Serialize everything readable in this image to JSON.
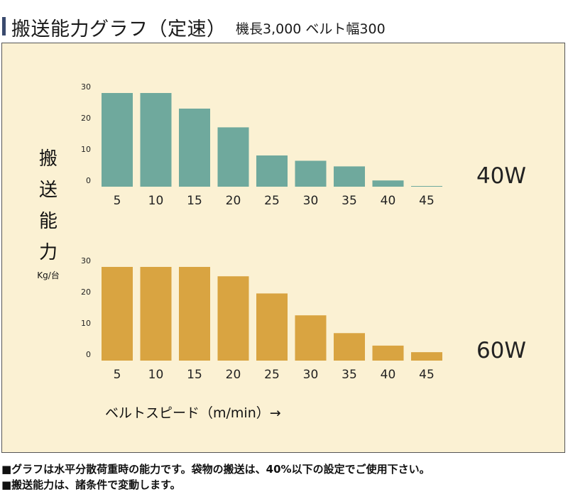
{
  "header": {
    "title": "搬送能力グラフ（定速）",
    "subtitle": "機長3,000 ベルト幅300"
  },
  "chart_data": [
    {
      "type": "bar",
      "series_name": "40W",
      "categories": [
        "5",
        "10",
        "15",
        "20",
        "25",
        "30",
        "35",
        "40",
        "45"
      ],
      "values": [
        30,
        30,
        25,
        19,
        10,
        8.3,
        6.5,
        2,
        0
      ],
      "ylabel": "搬送能力",
      "yunit": "Kg/台",
      "xlabel": "ベルトスピード（m/min）→",
      "yticks": [
        "0",
        "10",
        "20",
        "30"
      ],
      "ylim": [
        0,
        30
      ],
      "color": "#6fa99d"
    },
    {
      "type": "bar",
      "series_name": "60W",
      "categories": [
        "5",
        "10",
        "15",
        "20",
        "25",
        "30",
        "35",
        "40",
        "45"
      ],
      "values": [
        30,
        30,
        30,
        27,
        21.5,
        14.5,
        8.8,
        4.8,
        2.7
      ],
      "ylabel": "搬送能力",
      "yunit": "Kg/台",
      "xlabel": "ベルトスピード（m/min）→",
      "yticks": [
        "0",
        "10",
        "20",
        "30"
      ],
      "ylim": [
        0,
        30
      ],
      "color": "#d9a441"
    }
  ],
  "axis": {
    "ylabel_chars": [
      "搬",
      "送",
      "能",
      "力"
    ],
    "yunit": "Kg/台",
    "xlabel": "ベルトスピード（m/min）→"
  },
  "notes": [
    "■グラフは水平分散荷重時の能力です。袋物の搬送は、40%以下の設定でご使用下さい。",
    "■搬送能力は、諸条件で変動します。"
  ]
}
